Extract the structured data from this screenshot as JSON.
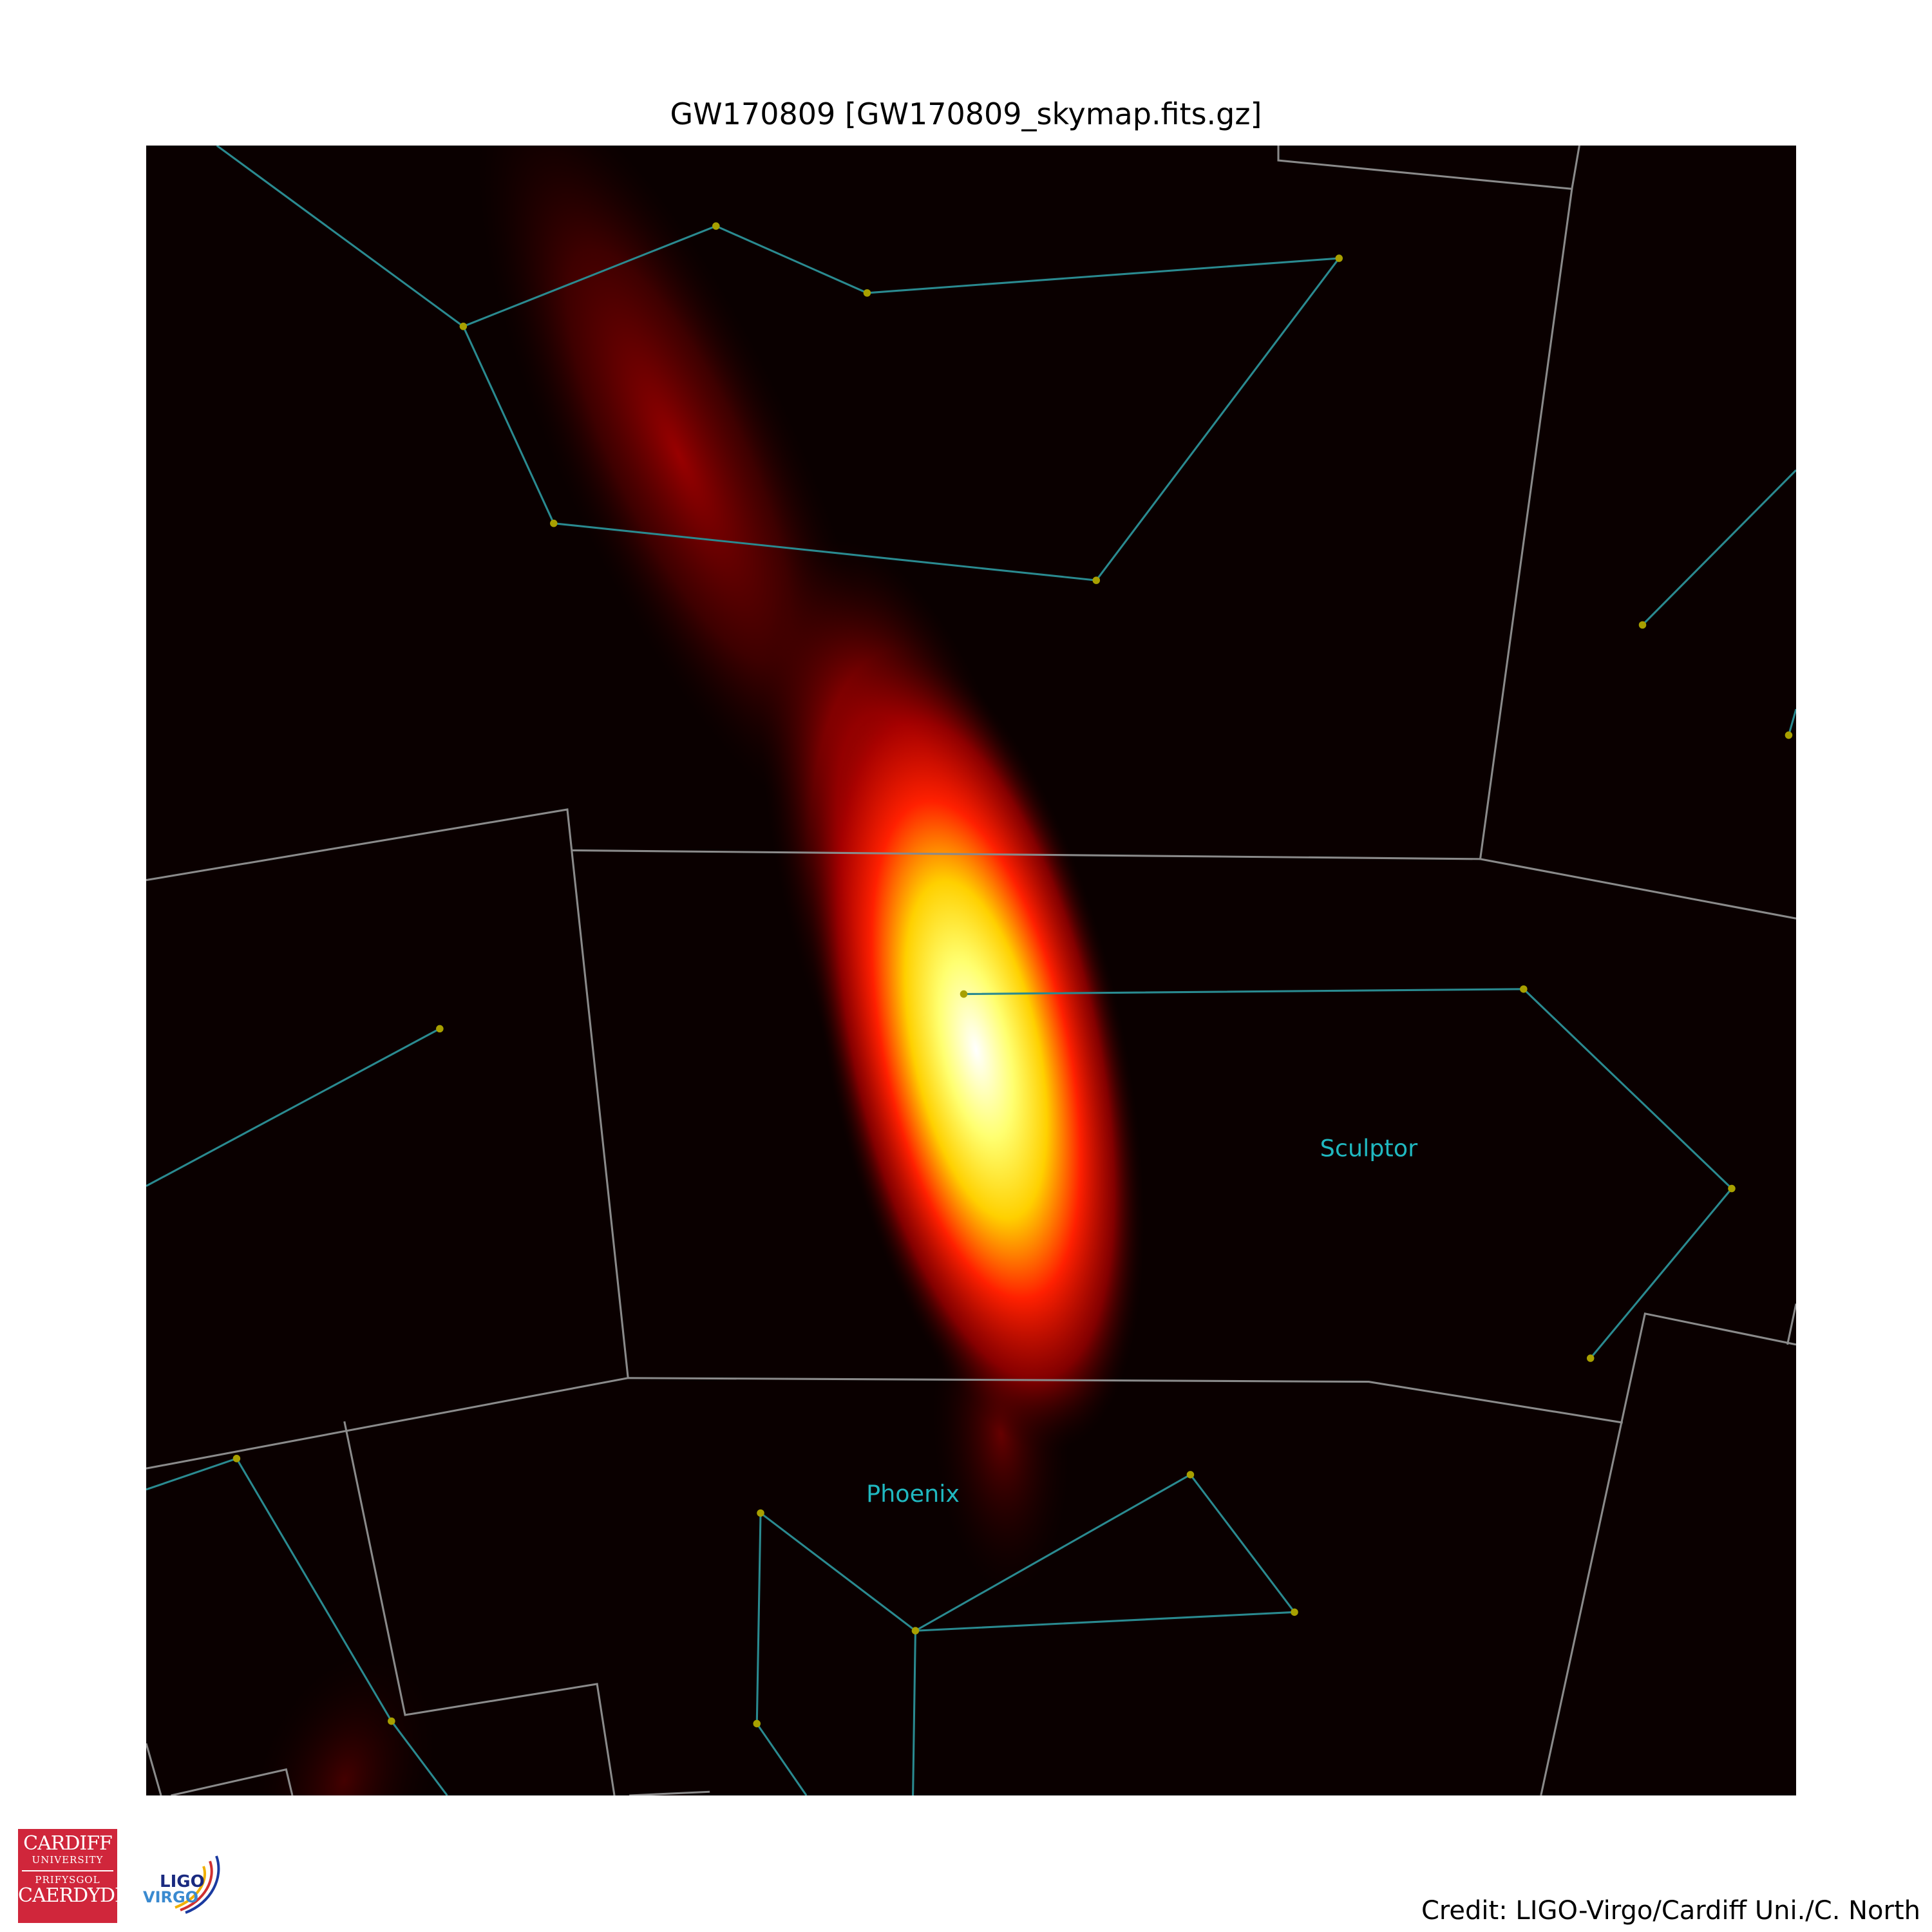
{
  "title": "GW170809 [GW170809_skymap.fits.gz]",
  "credit": "Credit: LIGO-Virgo/Cardiff Uni./C. North",
  "constellation_labels": {
    "sculptor": "Sculptor",
    "phoenix": "Phoenix"
  },
  "logos": {
    "cardiff_line1": "CARDIFF",
    "cardiff_line2": "UNIVERSITY",
    "cardiff_line3": "PRIFYSGOL",
    "cardiff_line4": "CAERDYDD",
    "ligo": "LIGO",
    "virgo": "VIRGO"
  },
  "colors": {
    "background": "#0a0000",
    "constellation_line": "#2a8a90",
    "boundary_line": "#8a8a8a",
    "star": "#a8a000",
    "label": "#20b8c0",
    "cardiff_red": "#d0263b"
  }
}
